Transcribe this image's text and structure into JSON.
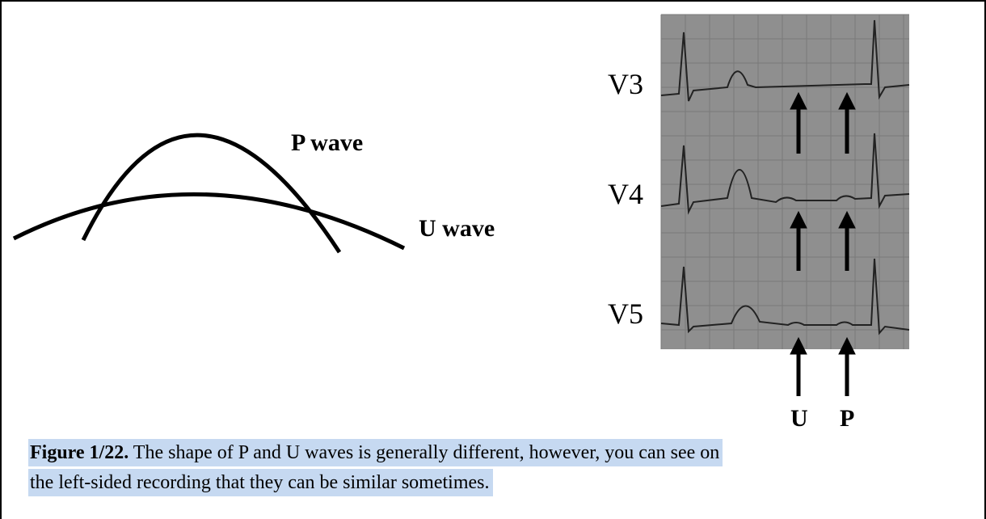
{
  "figure": {
    "left_labels": {
      "p_wave": "P wave",
      "u_wave": "U wave"
    },
    "leads": [
      "V3",
      "V4",
      "V5"
    ],
    "arrow_labels": [
      "U",
      "P"
    ]
  },
  "caption": {
    "label": "Figure 1/22.",
    "line1": " The shape of P and U waves is generally different, however, you can see on",
    "line2": "the left-sided recording that they can be similar sometimes."
  }
}
